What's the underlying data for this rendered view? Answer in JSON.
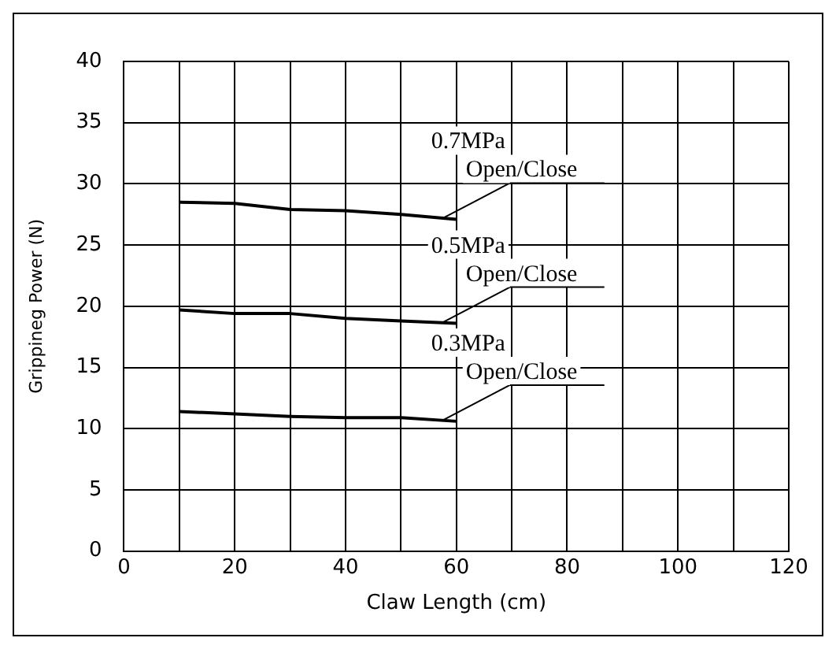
{
  "chart_data": {
    "type": "line",
    "xlabel": "Claw Length (cm)",
    "ylabel": "Grippineg Power (N)",
    "xlim": [
      0,
      120
    ],
    "xticks": [
      0,
      20,
      40,
      60,
      80,
      100,
      120
    ],
    "ylim": [
      0,
      40
    ],
    "yticks": [
      0,
      5,
      10,
      15,
      20,
      25,
      30,
      35,
      40
    ],
    "grid": true,
    "legend": false,
    "marker": "none",
    "line_style": "solid",
    "series": [
      {
        "name": "0.7MPa Open/Close",
        "color": "#000000",
        "x": [
          10,
          20,
          30,
          40,
          50,
          60
        ],
        "values": [
          28.5,
          28.4,
          27.9,
          27.8,
          27.5,
          27.1
        ]
      },
      {
        "name": "0.5MPa Open/Close",
        "color": "#000000",
        "x": [
          10,
          20,
          30,
          40,
          50,
          60
        ],
        "values": [
          19.7,
          19.4,
          19.4,
          19.0,
          18.8,
          18.6
        ]
      },
      {
        "name": "0.3MPa Open/Close",
        "color": "#000000",
        "x": [
          10,
          20,
          30,
          40,
          50,
          60
        ],
        "values": [
          11.4,
          11.2,
          11.0,
          10.9,
          10.9,
          10.6
        ]
      }
    ]
  }
}
